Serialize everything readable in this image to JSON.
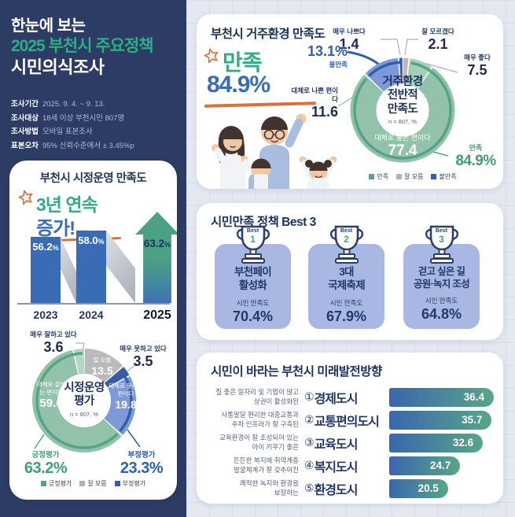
{
  "colors": {
    "accent_green": "#2fae84",
    "accent_blue": "#3a6cb5",
    "accent_orange": "#dd6f38",
    "navy_text": "#1d3360",
    "positive_green": "#55a585",
    "negative_blue": "#2f5fb0",
    "neutral_gray": "#b9babc",
    "box_periwinkle": "#a9b8e2",
    "left_bg": "#2c3c64",
    "right_bg": "#e4e8f1"
  },
  "header": {
    "line1": "한눈에 보는",
    "line2": "2025 부천시 주요정책",
    "line3": "시민의식조사"
  },
  "survey_info": [
    {
      "label": "조사기간",
      "value": "2025. 9. 4. ~ 9. 13."
    },
    {
      "label": "조사대상",
      "value": "18세 이상 부천시민 807명"
    },
    {
      "label": "조사방법",
      "value": "모바일 표본조사"
    },
    {
      "label": "표본오차",
      "value": "95% 신뢰수준에서 ± 3.45%p"
    }
  ],
  "admin_card": {
    "title": "부천시 시정운영 만족도",
    "highlight_line1": "3년 연속",
    "highlight_line2": "증가!",
    "bars": [
      {
        "year": "2023",
        "value": 56.2,
        "display": "56.2",
        "unit": "%"
      },
      {
        "year": "2024",
        "value": 58.0,
        "display": "58.0",
        "unit": "%"
      },
      {
        "year": "2025",
        "value": 63.2,
        "display": "63.2",
        "unit": "%"
      }
    ],
    "donut": {
      "center_line1": "시정운영",
      "center_line2": "평가",
      "center_note": "n = 807, %",
      "slices": [
        {
          "label": "잘 모름",
          "value": 13.5,
          "color": "#b9babc"
        },
        {
          "label": "매우 못하고 있다",
          "value": 3.5,
          "color": "#3a5ca6"
        },
        {
          "label": "대체로 못하는 편이다",
          "value": 19.8,
          "color": "#7e99d6"
        },
        {
          "label": "대체로 잘하는 편이다",
          "value": 59.6,
          "color": "#92c3aa"
        },
        {
          "label": "매우 잘하고 있다",
          "value": 3.6,
          "color": "#b4d6c4"
        }
      ],
      "arcs": [
        {
          "from": 13.5,
          "to": 36.8,
          "color": "#2f5fb0"
        },
        {
          "from": 36.8,
          "to": 100,
          "color": "#55a585"
        }
      ],
      "callouts": {
        "very_good_label": "매우 잘하고 있다",
        "very_good_value": "3.6",
        "very_bad_label": "매우 못하고 있다",
        "very_bad_value": "3.5"
      },
      "seg_labels": {
        "unknown_label": "잘 모름",
        "unknown_value": "13.5",
        "negative_label": "대체로 못하는 편이다",
        "negative_value": "19.8",
        "positive_label": "대체로 잘하는 편이다",
        "positive_value": "59.6"
      },
      "totals": {
        "positive_label": "긍정평가",
        "positive_value": "63.2%",
        "negative_label": "부정평가",
        "negative_value": "23.3%"
      },
      "legend": [
        {
          "label": "긍정평가",
          "color": "#55a585"
        },
        {
          "label": "잘 모름",
          "color": "#b0b2b6"
        },
        {
          "label": "부정평가",
          "color": "#2f5fb0"
        }
      ]
    }
  },
  "residence_card": {
    "title": "부천시 거주환경 만족도",
    "headline_label": "만족",
    "headline_value": "84.9%",
    "donut": {
      "center_line1": "거주환경",
      "center_line2": "전반적",
      "center_line3": "만족도",
      "center_note": "n = 807, %",
      "slices": [
        {
          "label": "잘 모르겠다",
          "value": 2.1,
          "color": "#b9babc"
        },
        {
          "label": "매우 좋다",
          "value": 7.5,
          "color": "#a6cfb9"
        },
        {
          "label": "대체로 좋은 편이다",
          "value": 77.4,
          "color": "#92c3aa"
        },
        {
          "label": "대체로 나쁜 편이다",
          "value": 11.6,
          "color": "#7e99d6"
        },
        {
          "label": "매우 나쁘다",
          "value": 1.4,
          "color": "#3a5ca6"
        }
      ],
      "arcs": [
        {
          "from": 2.1,
          "to": 87.0,
          "color": "#55a585"
        },
        {
          "from": 87.0,
          "to": 100,
          "color": "#2f5fb0"
        }
      ],
      "callouts": {
        "very_bad_label": "매우 나쁘다",
        "very_bad_value": "1.4",
        "unknown_label": "잘 모르겠다",
        "unknown_value": "2.1",
        "very_good_label": "매우 좋다",
        "very_good_value": "7.5",
        "somewhat_bad_label": "대체로 나쁜 편이다",
        "somewhat_bad_value": "11.6"
      },
      "seg_labels": {
        "good_label": "대체로 좋은 편이다",
        "good_value": "77.4"
      },
      "totals": {
        "dissatisfied_value": "13.1%",
        "dissatisfied_label": "불만족",
        "satisfied_label": "만족",
        "satisfied_value": "84.9%"
      },
      "legend": [
        {
          "label": "만족",
          "color": "#55a585"
        },
        {
          "label": "잘 모름",
          "color": "#b0b2b6"
        },
        {
          "label": "불만족",
          "color": "#2f5fb0"
        }
      ]
    }
  },
  "best_card": {
    "title": "시민만족 정책 Best 3",
    "items": [
      {
        "badge": "Best",
        "rank": "1",
        "name_line1": "부천페이",
        "name_line2": "활성화",
        "metric": "시민 만족도",
        "value": "70.4%"
      },
      {
        "badge": "Best",
        "rank": "2",
        "name_line1": "3대",
        "name_line2": "국제축제",
        "metric": "시민 만족도",
        "value": "67.9%"
      },
      {
        "badge": "Best",
        "rank": "3",
        "name_line1": "걷고 싶은 길",
        "name_line2": "공원·녹지 조성",
        "metric": "시민 만족도",
        "value": "64.8%"
      }
    ]
  },
  "future_card": {
    "title": "시민이 바라는 부천시 미래발전방향",
    "rows": [
      {
        "desc_line1": "질 좋은 일자리 및 기업이 많고",
        "desc_line2": "상권이 활성화된",
        "num": "①",
        "label": "경제도시",
        "value": 36.4,
        "display": "36.4"
      },
      {
        "desc_line1": "사통팔달 편리한 대중교통과",
        "desc_line2": "주차 인프라가 잘 구축된",
        "num": "②",
        "label": "교통편의도시",
        "value": 35.7,
        "display": "35.7"
      },
      {
        "desc_line1": "교육환경이 잘 조성되어 있는",
        "desc_line2": "아이 키우기 좋은",
        "num": "③",
        "label": "교육도시",
        "value": 32.6,
        "display": "32.6"
      },
      {
        "desc_line1": "든든한 복지에 취약계층",
        "desc_line2": "발굴체계가 잘 갖추어진",
        "num": "④",
        "label": "복지도시",
        "value": 24.7,
        "display": "24.7"
      },
      {
        "desc_line1": "쾌적한 녹지와 환경을",
        "desc_line2": "보장하는",
        "num": "⑤",
        "label": "환경도시",
        "value": 20.5,
        "display": "20.5"
      }
    ]
  },
  "chart_data": [
    {
      "type": "bar",
      "title": "부천시 시정운영 만족도",
      "categories": [
        "2023",
        "2024",
        "2025"
      ],
      "values": [
        56.2,
        58.0,
        63.2
      ],
      "unit": "%",
      "annotation": "3년 연속 증가!"
    },
    {
      "type": "pie",
      "title": "시정운영 평가",
      "subtitle": "n = 807, %",
      "labels": [
        "잘 모름",
        "매우 못하고 있다",
        "대체로 못하는 편이다",
        "대체로 잘하는 편이다",
        "매우 잘하고 있다"
      ],
      "values": [
        13.5,
        3.5,
        19.8,
        59.6,
        3.6
      ],
      "aggregates": {
        "긍정평가": 63.2,
        "부정평가": 23.3
      },
      "legend": [
        "긍정평가",
        "잘 모름",
        "부정평가"
      ]
    },
    {
      "type": "pie",
      "title": "거주환경 전반적 만족도",
      "subtitle": "n = 807, %",
      "labels": [
        "잘 모르겠다",
        "매우 좋다",
        "대체로 좋은 편이다",
        "대체로 나쁜 편이다",
        "매우 나쁘다"
      ],
      "values": [
        2.1,
        7.5,
        77.4,
        11.6,
        1.4
      ],
      "aggregates": {
        "만족": 84.9,
        "불만족": 13.1
      },
      "legend": [
        "만족",
        "잘 모름",
        "불만족"
      ]
    },
    {
      "type": "bar",
      "orientation": "horizontal",
      "title": "시민이 바라는 부천시 미래발전방향",
      "categories": [
        "경제도시",
        "교통편의도시",
        "교육도시",
        "복지도시",
        "환경도시"
      ],
      "values": [
        36.4,
        35.7,
        32.6,
        24.7,
        20.5
      ],
      "xlim": [
        0,
        36.4
      ]
    },
    {
      "type": "table",
      "title": "시민만족 정책 Best 3",
      "categories": [
        "부천페이 활성화",
        "3대 국제축제",
        "걷고 싶은 길 공원·녹지 조성"
      ],
      "values": [
        70.4,
        67.9,
        64.8
      ],
      "ylabel": "시민 만족도 (%)"
    }
  ]
}
